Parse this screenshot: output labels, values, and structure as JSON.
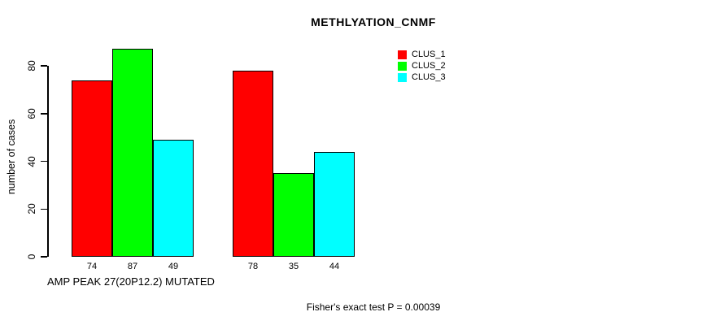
{
  "chart_data": {
    "type": "bar",
    "title": "METHLYATION_CNMF",
    "ylabel": "number of cases",
    "xlabel": "AMP PEAK 27(20P12.2) MUTATED",
    "ylim": [
      0,
      80
    ],
    "yticks": [
      0,
      20,
      40,
      60,
      80
    ],
    "grid": false,
    "legend_position": "top-right",
    "series": [
      {
        "name": "CLUS_1",
        "color": "#ff0000",
        "values": [
          74,
          78
        ]
      },
      {
        "name": "CLUS_2",
        "color": "#00ff00",
        "values": [
          87,
          35
        ]
      },
      {
        "name": "CLUS_3",
        "color": "#00ffff",
        "values": [
          49,
          44
        ]
      }
    ],
    "bar_value_labels": [
      [
        74,
        87,
        49
      ],
      [
        78,
        35,
        44
      ]
    ],
    "annotation": "Fisher's exact test P = 0.00039"
  },
  "colors": {
    "axis": "#000000",
    "background": "#ffffff",
    "clus_1": "#ff0000",
    "clus_2": "#00ff00",
    "clus_3": "#00ffff"
  }
}
